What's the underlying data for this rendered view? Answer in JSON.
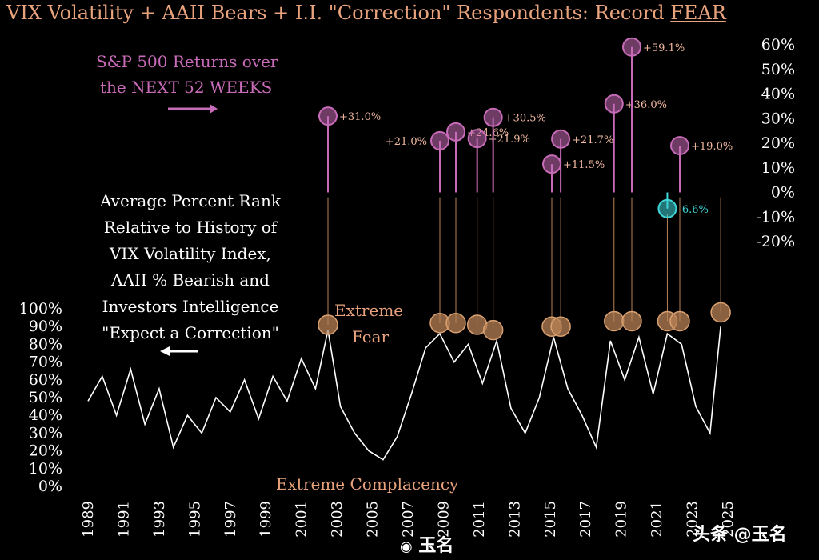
{
  "title": {
    "main": "VIX Volatility + AAII Bears + I.I. \"Correction\" Respondents: Record ",
    "fear": "FEAR"
  },
  "annotations": {
    "returns_label_1": "S&P 500 Returns over",
    "returns_label_2": "the NEXT 52 WEEKS",
    "rank_label": [
      "Average Percent Rank",
      "Relative to History of",
      "VIX Volatility Index,",
      "AAII % Bearish and",
      "Investors Intelligence",
      "\"Expect a Correction\""
    ],
    "extreme_fear_1": "Extreme",
    "extreme_fear_2": "Fear",
    "extreme_complacency": "Extreme Complacency"
  },
  "watermarks": {
    "weibo": "玉名",
    "toutiao": "头条 @玉名"
  },
  "colors": {
    "title": "#e8a27c",
    "returns": "#c86bb8",
    "rank_line": "#ffffff",
    "fear_marker": "#b88256",
    "negative_return": "#3fd6d8"
  },
  "chart_data": {
    "type": "line",
    "left_axis": {
      "label": "Average Percent Rank",
      "ticks": [
        "100%",
        "90%",
        "80%",
        "70%",
        "60%",
        "50%",
        "40%",
        "30%",
        "20%",
        "10%",
        "0%"
      ],
      "range": [
        0,
        100
      ]
    },
    "right_axis": {
      "label": "S&P 500 Returns over the NEXT 52 WEEKS",
      "ticks": [
        "60%",
        "50%",
        "40%",
        "30%",
        "20%",
        "10%",
        "0%",
        "-10%",
        "-20%"
      ],
      "range": [
        -20,
        60
      ]
    },
    "x_axis": {
      "ticks": [
        "1989",
        "1991",
        "1993",
        "1995",
        "1997",
        "1999",
        "2001",
        "2003",
        "2005",
        "2007",
        "2009",
        "2011",
        "2013",
        "2015",
        "2017",
        "2019",
        "2021",
        "2023",
        "2025"
      ],
      "range": [
        1989,
        2025
      ]
    },
    "series": [
      {
        "name": "Average Percent Rank",
        "x": [
          1989.0,
          1989.8,
          1990.6,
          1991.4,
          1992.2,
          1993.0,
          1993.8,
          1994.6,
          1995.4,
          1996.2,
          1997.0,
          1997.8,
          1998.6,
          1999.4,
          2000.2,
          2001.0,
          2001.8,
          2002.5,
          2003.2,
          2004.0,
          2004.8,
          2005.6,
          2006.4,
          2007.2,
          2008.0,
          2008.8,
          2009.6,
          2010.4,
          2011.2,
          2012.0,
          2012.8,
          2013.6,
          2014.4,
          2015.2,
          2016.0,
          2016.8,
          2017.6,
          2018.4,
          2019.2,
          2020.0,
          2020.8,
          2021.6,
          2022.4,
          2023.2,
          2024.0,
          2024.6
        ],
        "y": [
          48,
          62,
          40,
          66,
          35,
          55,
          22,
          40,
          30,
          50,
          42,
          60,
          38,
          62,
          48,
          72,
          55,
          88,
          45,
          30,
          20,
          15,
          28,
          52,
          78,
          86,
          70,
          80,
          58,
          82,
          44,
          30,
          50,
          84,
          55,
          40,
          22,
          82,
          60,
          84,
          52,
          86,
          80,
          45,
          30,
          90
        ]
      }
    ],
    "fear_events": [
      {
        "year": 2002.5,
        "rank": 91
      },
      {
        "year": 2008.8,
        "rank": 92
      },
      {
        "year": 2009.7,
        "rank": 92
      },
      {
        "year": 2010.9,
        "rank": 91
      },
      {
        "year": 2011.8,
        "rank": 88
      },
      {
        "year": 2015.1,
        "rank": 90
      },
      {
        "year": 2015.6,
        "rank": 90
      },
      {
        "year": 2018.6,
        "rank": 93
      },
      {
        "year": 2019.6,
        "rank": 93
      },
      {
        "year": 2021.6,
        "rank": 93
      },
      {
        "year": 2022.3,
        "rank": 93
      },
      {
        "year": 2024.6,
        "rank": 98
      }
    ],
    "returns_52wk": [
      {
        "year": 2002.5,
        "value": 31.0,
        "label": "+31.0%"
      },
      {
        "year": 2008.8,
        "value": 21.0,
        "label": "+21.0%"
      },
      {
        "year": 2009.7,
        "value": 24.6,
        "label": "+24.6%"
      },
      {
        "year": 2010.9,
        "value": 21.9,
        "label": "+21.9%"
      },
      {
        "year": 2011.8,
        "value": 30.5,
        "label": "+30.5%"
      },
      {
        "year": 2015.1,
        "value": 11.5,
        "label": "+11.5%"
      },
      {
        "year": 2015.6,
        "value": 21.7,
        "label": "+21.7%"
      },
      {
        "year": 2018.6,
        "value": 36.0,
        "label": "+36.0%"
      },
      {
        "year": 2019.6,
        "value": 59.1,
        "label": "+59.1%"
      },
      {
        "year": 2021.6,
        "value": -6.6,
        "label": "-6.6%"
      },
      {
        "year": 2022.3,
        "value": 19.0,
        "label": "+19.0%"
      }
    ]
  }
}
